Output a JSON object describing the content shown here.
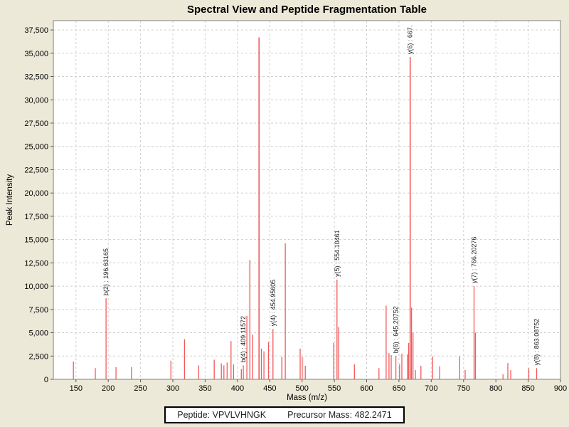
{
  "header": {
    "title": "Spectral View and Peptide Fragmentation Table"
  },
  "footer": {
    "peptide": "Peptide: VPVLVHNGK",
    "precursor_mass": "Precursor Mass: 482.2471"
  },
  "colors": {
    "background": "#ece9d8",
    "plot_background": "#ffffff",
    "plot_border": "#7f7f7f",
    "gridline": "#cfcfcf",
    "peak": "#f25a5a",
    "peak_pale": "#f5a5a5",
    "text": "#000000"
  },
  "chart_data": {
    "type": "bar",
    "title": "Spectral View and Peptide Fragmentation Table",
    "xlabel": "Mass (m/z)",
    "ylabel": "Peak Intensity",
    "xlim": [
      115,
      900
    ],
    "ylim": [
      0,
      38500
    ],
    "grid": "dashed",
    "legend": "none",
    "x_ticks": [
      {
        "value": 150,
        "label": "150"
      },
      {
        "value": 200,
        "label": "200"
      },
      {
        "value": 250,
        "label": "250"
      },
      {
        "value": 300,
        "label": "300"
      },
      {
        "value": 350,
        "label": "350"
      },
      {
        "value": 400,
        "label": "400"
      },
      {
        "value": 450,
        "label": "450"
      },
      {
        "value": 500,
        "label": "500"
      },
      {
        "value": 550,
        "label": "550"
      },
      {
        "value": 600,
        "label": "600"
      },
      {
        "value": 650,
        "label": "650"
      },
      {
        "value": 700,
        "label": "700"
      },
      {
        "value": 750,
        "label": "750"
      },
      {
        "value": 800,
        "label": "800"
      },
      {
        "value": 850,
        "label": "850"
      },
      {
        "value": 900,
        "label": "900"
      }
    ],
    "y_ticks": [
      {
        "value": 0,
        "label": "0"
      },
      {
        "value": 2500,
        "label": "2,500"
      },
      {
        "value": 5000,
        "label": "5,000"
      },
      {
        "value": 7500,
        "label": "7,500"
      },
      {
        "value": 10000,
        "label": "10,000"
      },
      {
        "value": 12500,
        "label": "12,500"
      },
      {
        "value": 15000,
        "label": "15,000"
      },
      {
        "value": 17500,
        "label": "17,500"
      },
      {
        "value": 20000,
        "label": "20,000"
      },
      {
        "value": 22500,
        "label": "22,500"
      },
      {
        "value": 25000,
        "label": "25,000"
      },
      {
        "value": 27500,
        "label": "27,500"
      },
      {
        "value": 30000,
        "label": "30,000"
      },
      {
        "value": 32500,
        "label": "32,500"
      },
      {
        "value": 35000,
        "label": "35,000"
      },
      {
        "value": 37500,
        "label": "37,500"
      }
    ],
    "peaks": [
      {
        "mz": 146,
        "intensity": 1900
      },
      {
        "mz": 180,
        "intensity": 1200
      },
      {
        "mz": 196.63,
        "intensity": 8700
      },
      {
        "mz": 212,
        "intensity": 1300
      },
      {
        "mz": 236,
        "intensity": 1300
      },
      {
        "mz": 297,
        "intensity": 2000
      },
      {
        "mz": 318,
        "intensity": 4300
      },
      {
        "mz": 340,
        "intensity": 1500
      },
      {
        "mz": 364,
        "intensity": 2100
      },
      {
        "mz": 375,
        "intensity": 1700
      },
      {
        "mz": 379,
        "intensity": 1500
      },
      {
        "mz": 384,
        "intensity": 1800
      },
      {
        "mz": 390,
        "intensity": 4100
      },
      {
        "mz": 394,
        "intensity": 1600
      },
      {
        "mz": 406,
        "intensity": 1100
      },
      {
        "mz": 409.12,
        "intensity": 1500
      },
      {
        "mz": 414.6,
        "intensity": 6800
      },
      {
        "mz": 419,
        "intensity": 12800,
        "pale": true
      },
      {
        "mz": 423.5,
        "intensity": 4800
      },
      {
        "mz": 433.4,
        "intensity": 36700
      },
      {
        "mz": 437,
        "intensity": 3300
      },
      {
        "mz": 441,
        "intensity": 3000
      },
      {
        "mz": 448,
        "intensity": 4000
      },
      {
        "mz": 454.96,
        "intensity": 5400
      },
      {
        "mz": 468.6,
        "intensity": 2400,
        "pale": true
      },
      {
        "mz": 474,
        "intensity": 14600
      },
      {
        "mz": 497,
        "intensity": 3300
      },
      {
        "mz": 500.5,
        "intensity": 2400,
        "pale": true
      },
      {
        "mz": 505,
        "intensity": 1450
      },
      {
        "mz": 549,
        "intensity": 3900
      },
      {
        "mz": 554.1,
        "intensity": 10700
      },
      {
        "mz": 556.5,
        "intensity": 5600
      },
      {
        "mz": 581,
        "intensity": 1600
      },
      {
        "mz": 619,
        "intensity": 1200
      },
      {
        "mz": 630,
        "intensity": 7900,
        "pale": true
      },
      {
        "mz": 634.5,
        "intensity": 2800
      },
      {
        "mz": 638,
        "intensity": 2600
      },
      {
        "mz": 645.21,
        "intensity": 2500
      },
      {
        "mz": 651,
        "intensity": 1600
      },
      {
        "mz": 654.5,
        "intensity": 2750
      },
      {
        "mz": 663,
        "intensity": 2700
      },
      {
        "mz": 665,
        "intensity": 3900
      },
      {
        "mz": 667.4,
        "intensity": 34600
      },
      {
        "mz": 669.5,
        "intensity": 7700
      },
      {
        "mz": 671.5,
        "intensity": 5000,
        "pale": true
      },
      {
        "mz": 675.5,
        "intensity": 1000
      },
      {
        "mz": 684,
        "intensity": 1450
      },
      {
        "mz": 702,
        "intensity": 2450
      },
      {
        "mz": 713,
        "intensity": 1400
      },
      {
        "mz": 744,
        "intensity": 2450
      },
      {
        "mz": 752.5,
        "intensity": 1000
      },
      {
        "mz": 766.2,
        "intensity": 10000
      },
      {
        "mz": 768.3,
        "intensity": 5000
      },
      {
        "mz": 811,
        "intensity": 550
      },
      {
        "mz": 818.5,
        "intensity": 1750
      },
      {
        "mz": 823,
        "intensity": 1000
      },
      {
        "mz": 851,
        "intensity": 1200
      },
      {
        "mz": 863.09,
        "intensity": 1200
      }
    ],
    "annotations": [
      {
        "text": "b(2) : 196.63165",
        "mz": 196.63,
        "intensity": 8700
      },
      {
        "text": "b(4) : 409.11572",
        "mz": 409.12,
        "intensity": 1500
      },
      {
        "text": "y(4) : 454.95605",
        "mz": 454.96,
        "intensity": 5400
      },
      {
        "text": "y(5) : 554.10461",
        "mz": 554.1,
        "intensity": 10700
      },
      {
        "text": "b(6) : 645.20752",
        "mz": 645.21,
        "intensity": 2500
      },
      {
        "text": "y(6) : 667.",
        "mz": 667.4,
        "intensity": 34600
      },
      {
        "text": "y(7) : 766.20276",
        "mz": 766.2,
        "intensity": 10000
      },
      {
        "text": "y(8) : 863.08752",
        "mz": 863.09,
        "intensity": 1200
      }
    ]
  }
}
